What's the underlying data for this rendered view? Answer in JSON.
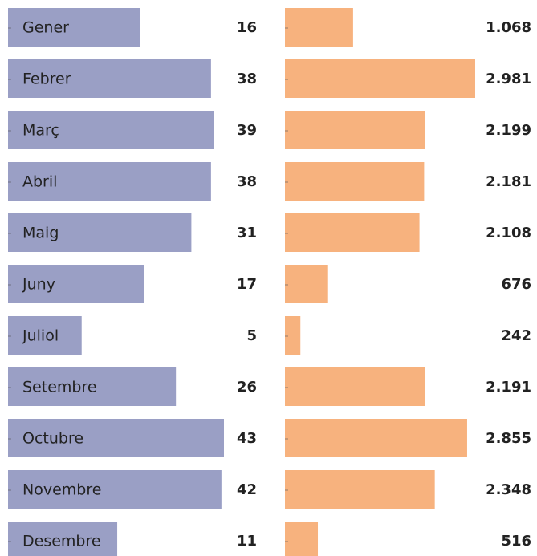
{
  "chart_data": {
    "type": "bar",
    "categories": [
      "Gener",
      "Febrer",
      "Març",
      "Abril",
      "Maig",
      "Juny",
      "Juliol",
      "Setembre",
      "Octubre",
      "Novembre",
      "Desembre"
    ],
    "series": [
      {
        "color": "#9a9fc5",
        "values": [
          16,
          38,
          39,
          38,
          31,
          17,
          5,
          26,
          43,
          42,
          11
        ],
        "xlim": [
          0,
          43
        ],
        "scale": "sqrt"
      },
      {
        "color": "#f7b27e",
        "values": [
          1068,
          2981,
          2199,
          2181,
          2108,
          676,
          242,
          2191,
          2855,
          2348,
          516
        ],
        "value_labels": [
          "1.068",
          "2.981",
          "2.199",
          "2.181",
          "2.108",
          "676",
          "242",
          "2.191",
          "2.855",
          "2.348",
          "516"
        ],
        "xlim": [
          0,
          3000
        ],
        "scale": "linear"
      }
    ]
  }
}
